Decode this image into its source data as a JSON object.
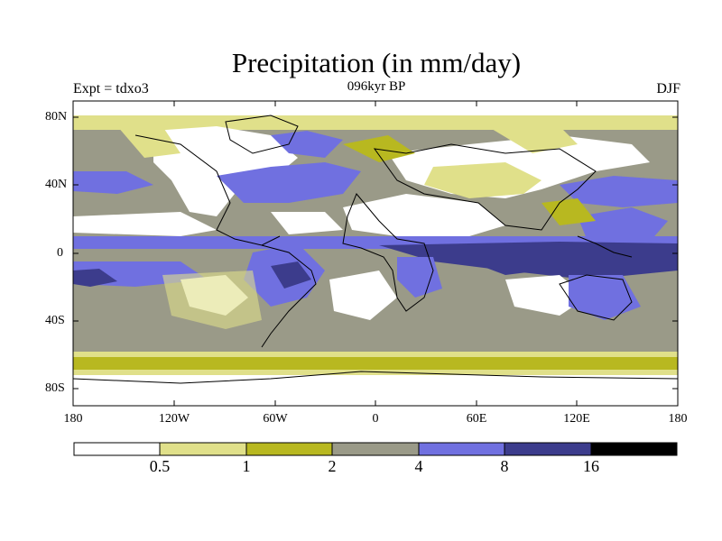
{
  "title": "Precipitation (in mm/day)",
  "experiment": "Expt = tdxo3",
  "period": "096kyr BP",
  "season": "DJF",
  "lat_labels": [
    "80N",
    "40N",
    "0",
    "40S",
    "80S"
  ],
  "lon_labels": [
    "180",
    "120W",
    "60W",
    "0",
    "60E",
    "120E",
    "180"
  ],
  "colorbar": {
    "ticks": [
      "0.5",
      "1",
      "2",
      "4",
      "8",
      "16"
    ],
    "colors": [
      "#ffffff",
      "#e0e08a",
      "#b8b820",
      "#9a9a88",
      "#7070e0",
      "#3c3c8c",
      "#000000"
    ]
  }
}
